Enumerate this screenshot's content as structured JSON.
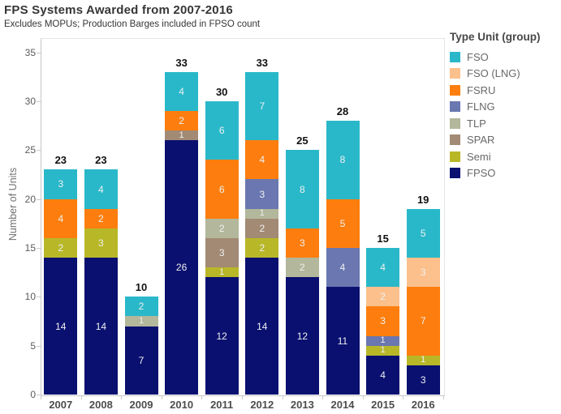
{
  "chart_data": {
    "type": "bar",
    "stacked": true,
    "title": "FPS Systems Awarded from 2007-2016",
    "subtitle": "Excludes MOPUs; Production Barges included in FPSO count",
    "ylabel": "Number of Units",
    "legend_title": "Type Unit (group)",
    "legend_position": "right",
    "grid": false,
    "categories": [
      "2007",
      "2008",
      "2009",
      "2010",
      "2011",
      "2012",
      "2013",
      "2014",
      "2015",
      "2016"
    ],
    "totals": [
      23,
      23,
      10,
      33,
      30,
      33,
      25,
      28,
      15,
      19
    ],
    "yticks": [
      0,
      5,
      10,
      15,
      20,
      25,
      30,
      35
    ],
    "ylim": [
      0,
      36.5
    ],
    "series": [
      {
        "name": "FSO",
        "color": "#29b8c9",
        "values": [
          3,
          4,
          2,
          4,
          6,
          7,
          8,
          8,
          4,
          5
        ]
      },
      {
        "name": "FSO (LNG)",
        "color": "#fcc08c",
        "values": [
          0,
          0,
          0,
          0,
          0,
          0,
          0,
          0,
          2,
          3
        ]
      },
      {
        "name": "FSRU",
        "color": "#fd7e0e",
        "values": [
          4,
          2,
          0,
          2,
          6,
          4,
          3,
          5,
          3,
          7
        ]
      },
      {
        "name": "FLNG",
        "color": "#6a77b0",
        "values": [
          0,
          0,
          0,
          0,
          0,
          3,
          0,
          4,
          1,
          0
        ]
      },
      {
        "name": "TLP",
        "color": "#b3b79b",
        "values": [
          0,
          0,
          1,
          0,
          2,
          1,
          2,
          0,
          0,
          0
        ]
      },
      {
        "name": "SPAR",
        "color": "#a28a74",
        "values": [
          0,
          0,
          0,
          1,
          3,
          2,
          0,
          0,
          0,
          0
        ]
      },
      {
        "name": "Semi",
        "color": "#b8b728",
        "values": [
          2,
          3,
          0,
          0,
          1,
          2,
          0,
          0,
          1,
          1
        ]
      },
      {
        "name": "FPSO",
        "color": "#0a1070",
        "values": [
          14,
          14,
          7,
          26,
          12,
          14,
          12,
          11,
          4,
          3
        ]
      }
    ]
  }
}
